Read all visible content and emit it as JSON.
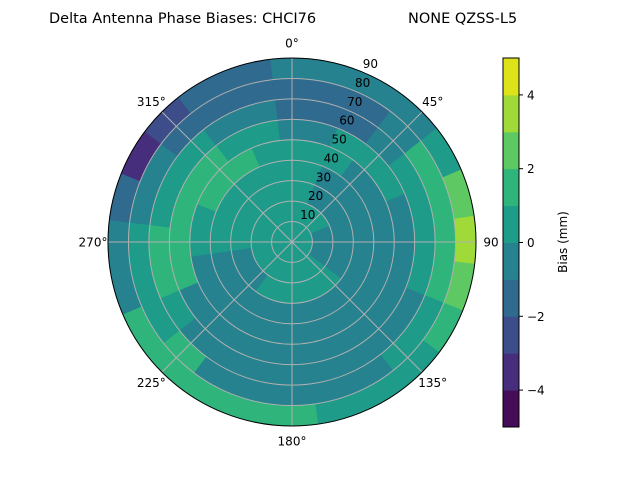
{
  "chart_data": {
    "type": "heatmap",
    "subtype": "polar filled contour",
    "title": "Delta Antenna Phase Biases: CHCI76",
    "subtitle": "NONE QZSS-L5",
    "angular_ticks": [
      {
        "angle": 0,
        "label": "0°"
      },
      {
        "angle": 45,
        "label": "45°"
      },
      {
        "angle": 90,
        "label": "90"
      },
      {
        "angle": 135,
        "label": "135°"
      },
      {
        "angle": 180,
        "label": "180°"
      },
      {
        "angle": 225,
        "label": "225°"
      },
      {
        "angle": 270,
        "label": "270°"
      },
      {
        "angle": 315,
        "label": "315°"
      }
    ],
    "angular_direction": "clockwise",
    "angular_zero": "top",
    "radial_ticks": [
      {
        "value": 10,
        "label": "10"
      },
      {
        "value": 20,
        "label": "20"
      },
      {
        "value": 30,
        "label": "30"
      },
      {
        "value": 40,
        "label": "40"
      },
      {
        "value": 50,
        "label": "50"
      },
      {
        "value": 60,
        "label": "60"
      },
      {
        "value": 70,
        "label": "70"
      },
      {
        "value": 80,
        "label": "80"
      },
      {
        "value": 90,
        "label": "90"
      }
    ],
    "radial_range": [
      0,
      90
    ],
    "radial_label_angle": 22.5,
    "grid": true,
    "colormap": "viridis",
    "levels": [
      -5,
      -4,
      -3,
      -2,
      -1,
      0,
      1,
      2,
      3,
      4,
      5
    ],
    "level_colors": [
      "#450c57",
      "#472e7c",
      "#3d4d8a",
      "#306a8e",
      "#26828e",
      "#1f9b8a",
      "#2fb47c",
      "#5ec962",
      "#a0da39",
      "#dde318"
    ],
    "colorbar": {
      "label": "Bias (mm)",
      "ticks": [
        {
          "value": -4,
          "label": "−4"
        },
        {
          "value": -2,
          "label": "−2"
        },
        {
          "value": 0,
          "label": "0"
        },
        {
          "value": 2,
          "label": "2"
        },
        {
          "value": 4,
          "label": "4"
        }
      ],
      "range": [
        -5,
        5
      ],
      "placement": "right"
    },
    "grid_azimuths": [
      0,
      15,
      30,
      45,
      60,
      75,
      90,
      105,
      120,
      135,
      150,
      165,
      180,
      195,
      210,
      225,
      240,
      255,
      270,
      285,
      300,
      315,
      330,
      345
    ],
    "grid_radii": [
      5,
      15,
      25,
      35,
      45,
      55,
      65,
      75,
      85
    ],
    "values": [
      [
        0.5,
        0.5,
        0.5,
        0.5,
        0.5,
        0.5,
        0.5,
        0.5,
        0.5,
        0.5,
        0.5,
        0.5,
        0.5,
        0.5,
        0.5,
        0.5,
        0.5,
        0.5,
        0.5,
        0.5,
        0.5,
        0.5,
        0.5,
        0.5
      ],
      [
        0.5,
        0.5,
        0.5,
        0.5,
        0.5,
        -0.5,
        -0.5,
        -0.5,
        -0.5,
        0.5,
        0.5,
        0.5,
        0.5,
        0.5,
        0.5,
        0.5,
        0.5,
        0.5,
        0.5,
        0.5,
        0.5,
        0.5,
        0.5,
        0.5
      ],
      [
        0.5,
        0.5,
        -0.5,
        -0.5,
        -0.5,
        -0.5,
        -0.5,
        -0.5,
        -0.5,
        0.5,
        0.5,
        0.5,
        0.5,
        0.5,
        0.5,
        -0.5,
        -0.5,
        -0.5,
        0.5,
        0.5,
        0.5,
        0.5,
        0.5,
        0.5
      ],
      [
        0.5,
        0.5,
        -0.5,
        -0.5,
        -0.5,
        -0.5,
        -0.5,
        -0.5,
        -0.5,
        -0.5,
        -0.5,
        -0.5,
        -0.5,
        -0.5,
        -0.5,
        -0.5,
        -0.5,
        -0.5,
        0.5,
        0.5,
        0.5,
        0.5,
        0.5,
        0.5
      ],
      [
        0.5,
        0.5,
        0.5,
        -0.5,
        -0.5,
        -0.5,
        -0.5,
        -0.5,
        -0.5,
        -0.5,
        -0.5,
        -0.5,
        -0.5,
        -0.5,
        -0.5,
        -0.5,
        -0.5,
        -0.5,
        0.5,
        0.5,
        1.5,
        1.5,
        1.5,
        0.5
      ],
      [
        -0.5,
        -0.5,
        0.5,
        0.5,
        0.5,
        -0.5,
        -0.5,
        -0.5,
        -0.5,
        -0.5,
        -0.5,
        -0.5,
        -0.5,
        -0.5,
        -0.5,
        -0.5,
        -0.5,
        1.5,
        1.5,
        1.5,
        1.5,
        1.5,
        0.5,
        0.5
      ],
      [
        -1.5,
        -1.5,
        -1.5,
        -0.5,
        0.5,
        0.5,
        0.5,
        0.5,
        -0.5,
        -0.5,
        -0.5,
        -0.5,
        -0.5,
        -0.5,
        -0.5,
        -0.5,
        0.5,
        1.5,
        1.5,
        0.5,
        0.5,
        0.5,
        -0.5,
        -0.5
      ],
      [
        -1.5,
        -1.5,
        -1.5,
        -0.5,
        1.5,
        1.5,
        1.5,
        1.5,
        0.5,
        0.5,
        -0.5,
        -0.5,
        -0.5,
        -0.5,
        -0.5,
        1.5,
        0.5,
        0.5,
        0.5,
        -0.5,
        -0.5,
        -1.5,
        -1.5,
        -1.5
      ],
      [
        -0.5,
        -0.5,
        -0.5,
        -0.5,
        0.5,
        2.5,
        3.5,
        2.5,
        1.5,
        0.5,
        0.5,
        0.5,
        1.5,
        1.5,
        1.5,
        1.5,
        1.5,
        -0.5,
        -0.5,
        -1.5,
        -3.5,
        -2.5,
        -1.5,
        -1.5
      ]
    ]
  }
}
